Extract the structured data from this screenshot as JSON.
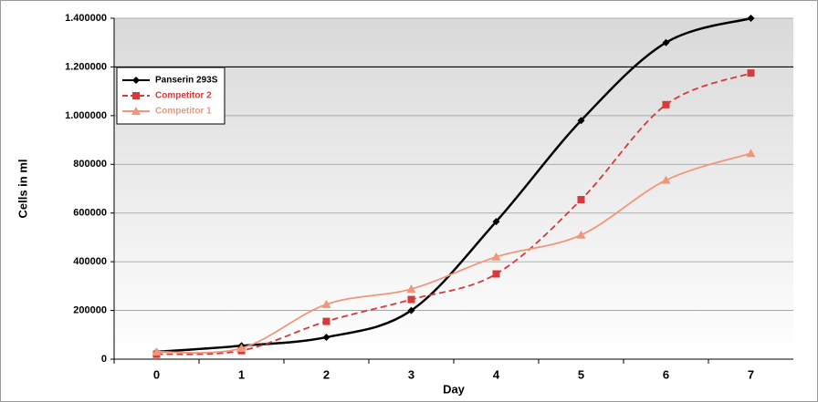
{
  "chart_data": {
    "type": "line",
    "x_label": "Day",
    "y_label": "Cells in ml",
    "categories": [
      "0",
      "1",
      "2",
      "3",
      "4",
      "5",
      "6",
      "7"
    ],
    "series": [
      {
        "name": "Panserin 293S",
        "color": "#000000",
        "marker": "diamond",
        "dashed": false,
        "values": [
          30000,
          55000,
          90000,
          200000,
          565000,
          980000,
          1300000,
          1400000
        ]
      },
      {
        "name": "Competitor 2",
        "color": "#d63a3a",
        "marker": "square",
        "dashed": true,
        "values": [
          20000,
          35000,
          155000,
          245000,
          350000,
          655000,
          1045000,
          1175000
        ]
      },
      {
        "name": "Competitor 1",
        "color": "#f0977a",
        "marker": "triangle",
        "dashed": false,
        "values": [
          30000,
          45000,
          225000,
          288000,
          420000,
          510000,
          735000,
          845000
        ]
      }
    ],
    "ylim": [
      0,
      1400000
    ],
    "yticks": [
      0,
      200000,
      400000,
      600000,
      800000,
      {
        "value": 1000000,
        "label": "1.000000"
      },
      {
        "value": 1200000,
        "label": "1.200000"
      },
      {
        "value": 1400000,
        "label": "1.400000"
      }
    ],
    "grid": true,
    "legend": "top-left"
  }
}
